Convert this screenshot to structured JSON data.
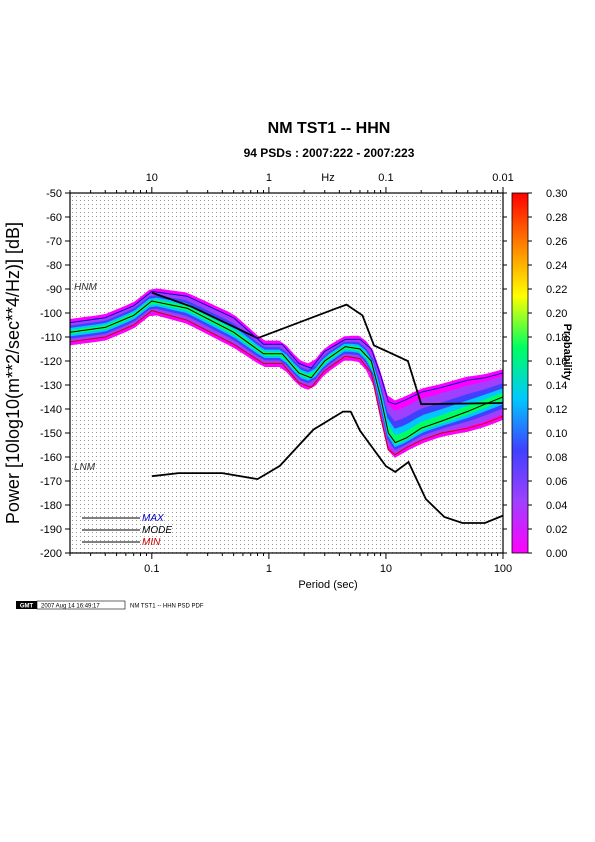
{
  "chart_data": {
    "type": "heatmap",
    "title": "NM TST1 -- HHN",
    "subtitle": "94 PSDs : 2007:222 - 2007:223",
    "xlabel": "Period (sec)",
    "ylabel": "Power [10log10(m**2/sec**4/Hz)] [dB]",
    "top_axis_label": "Hz",
    "x_scale": "log",
    "xlim": [
      0.02,
      100
    ],
    "ylim": [
      -200,
      -50
    ],
    "x_ticks": [
      {
        "v": 0.1,
        "label": "0.1"
      },
      {
        "v": 1,
        "label": "1"
      },
      {
        "v": 10,
        "label": "10"
      },
      {
        "v": 100,
        "label": "100"
      }
    ],
    "top_ticks": [
      {
        "v": 0.1,
        "label": "10"
      },
      {
        "v": 1,
        "label": "1"
      },
      {
        "v": 10,
        "label": "0.1"
      },
      {
        "v": 100,
        "label": "0.01"
      }
    ],
    "y_ticks": [
      -50,
      -60,
      -70,
      -80,
      -90,
      -100,
      -110,
      -120,
      -130,
      -140,
      -150,
      -160,
      -170,
      -180,
      -190,
      -200
    ],
    "grid": true,
    "colorbar": {
      "label": "Probability",
      "range": [
        0.0,
        0.3
      ],
      "ticks": [
        "0.30",
        "0.28",
        "0.26",
        "0.24",
        "0.22",
        "0.20",
        "0.18",
        "0.16",
        "0.14",
        "0.12",
        "0.10",
        "0.08",
        "0.06",
        "0.04",
        "0.02",
        "0.00"
      ],
      "colors": [
        "#ff00ff",
        "#a040ff",
        "#4040ff",
        "#00c8ff",
        "#00ff60",
        "#ffff00",
        "#ff8000",
        "#ff0000"
      ]
    },
    "annotations": [
      "HNM",
      "LNM"
    ],
    "series": [
      {
        "name": "HNM",
        "x": [
          0.1,
          0.22,
          0.8,
          3.8,
          4.6,
          6.3,
          7.9,
          15.4,
          20,
          100
        ],
        "y": [
          -91.5,
          -97.4,
          -110.5,
          -98,
          -96.5,
          -101,
          -113.5,
          -120,
          -138,
          -137.5
        ]
      },
      {
        "name": "LNM",
        "x": [
          0.1,
          0.17,
          0.4,
          0.8,
          1.24,
          2.4,
          4.3,
          5,
          6,
          10,
          12,
          15.6,
          21.9,
          31.6,
          45,
          70,
          100
        ],
        "y": [
          -168,
          -166.7,
          -166.7,
          -169.2,
          -163.7,
          -148.6,
          -141.1,
          -141.1,
          -149,
          -163.8,
          -166.2,
          -162.1,
          -177.5,
          -185,
          -187.5,
          -187.5,
          -184.4
        ]
      },
      {
        "name": "MODE",
        "x": [
          0.02,
          0.04,
          0.07,
          0.1,
          0.2,
          0.5,
          0.9,
          1.3,
          1.8,
          2.3,
          3,
          4.5,
          6,
          7.5,
          9,
          10.5,
          12,
          15,
          20,
          30,
          50,
          70,
          100
        ],
        "y": [
          -108,
          -106,
          -101,
          -95,
          -98,
          -108,
          -117,
          -117,
          -125,
          -127,
          -120,
          -114,
          -115,
          -120,
          -135,
          -150,
          -154,
          -152,
          -148,
          -145,
          -141,
          -138,
          -135
        ]
      },
      {
        "name": "MAX",
        "x": [
          0.02,
          0.04,
          0.07,
          0.1,
          0.2,
          0.5,
          0.9,
          1.3,
          1.8,
          2.3,
          3,
          4.5,
          6,
          7.5,
          9,
          10.5,
          12,
          15,
          20,
          30,
          50,
          70,
          100
        ],
        "y": [
          -104,
          -102,
          -97,
          -91,
          -93,
          -102,
          -113,
          -113,
          -121,
          -123,
          -116,
          -111,
          -111,
          -115,
          -126,
          -137,
          -138,
          -136,
          -133,
          -131,
          -128,
          -127,
          -125
        ]
      },
      {
        "name": "MIN",
        "x": [
          0.02,
          0.04,
          0.07,
          0.1,
          0.2,
          0.5,
          0.9,
          1.3,
          1.8,
          2.3,
          3,
          4.5,
          6,
          7.5,
          9,
          10.5,
          12,
          15,
          20,
          30,
          50,
          70,
          100
        ],
        "y": [
          -112,
          -110,
          -105,
          -99,
          -103,
          -113,
          -121,
          -121,
          -129,
          -131,
          -124,
          -118,
          -119,
          -125,
          -143,
          -157,
          -159,
          -156,
          -153,
          -150,
          -148,
          -146,
          -143
        ]
      }
    ],
    "legend_entries": [
      {
        "label": "MAX",
        "color": "#0000cc"
      },
      {
        "label": "MODE",
        "color": "#000000"
      },
      {
        "label": "MIN",
        "color": "#cc0000"
      }
    ],
    "legend_position": "bottom-left"
  },
  "footer": {
    "logo": "GMT",
    "timestamp": "2007 Aug 14 16:49:17",
    "caption": "NM TST1 -- HHN PSD PDF"
  }
}
